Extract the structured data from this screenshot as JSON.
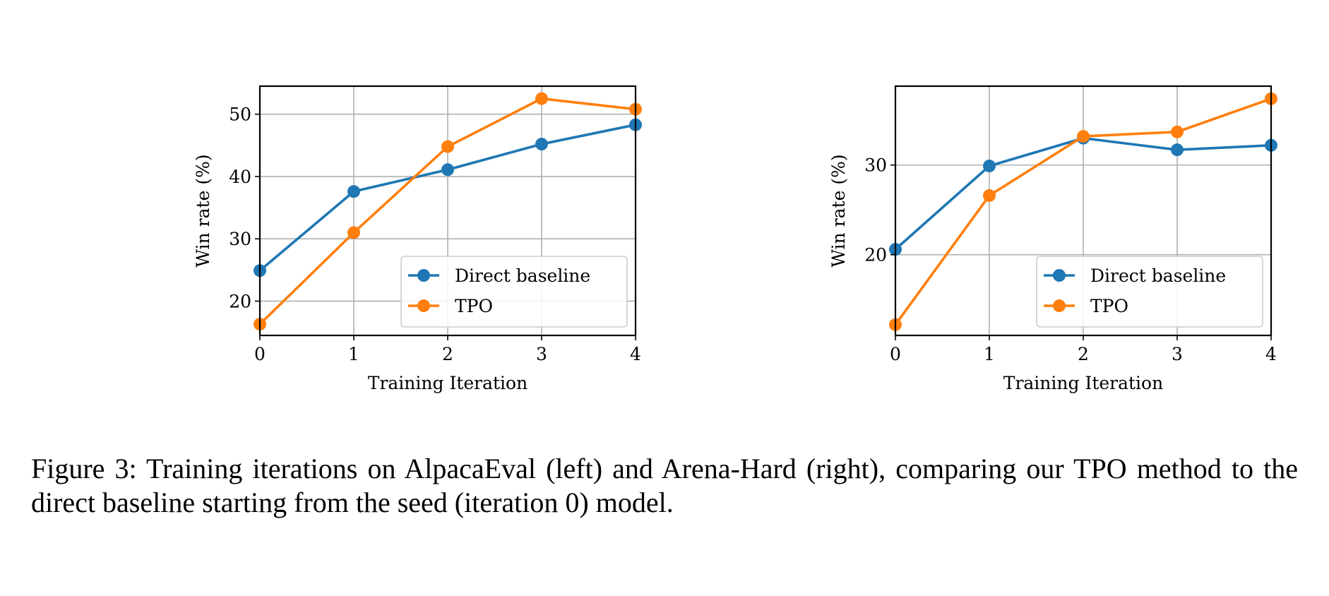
{
  "chart_data": [
    {
      "type": "line",
      "title": "",
      "xlabel": "Training Iteration",
      "ylabel": "Win rate (%)",
      "x": [
        0,
        1,
        2,
        3,
        4
      ],
      "xticks": [
        "0",
        "1",
        "2",
        "3",
        "4"
      ],
      "yticks": [
        "20",
        "30",
        "40",
        "50"
      ],
      "xlim": [
        0,
        4
      ],
      "ylim": [
        14.5,
        54.5
      ],
      "grid": true,
      "legend": "lower-right",
      "series": [
        {
          "name": "Direct baseline",
          "color": "#1f77b4",
          "values": [
            24.9,
            37.6,
            41.1,
            45.2,
            48.3
          ]
        },
        {
          "name": "TPO",
          "color": "#ff7f0e",
          "values": [
            16.3,
            31.0,
            44.8,
            52.5,
            50.8
          ]
        }
      ]
    },
    {
      "type": "line",
      "title": "",
      "xlabel": "Training Iteration",
      "ylabel": "Win rate (%)",
      "x": [
        0,
        1,
        2,
        3,
        4
      ],
      "xticks": [
        "0",
        "1",
        "2",
        "3",
        "4"
      ],
      "yticks": [
        "20",
        "30"
      ],
      "xlim": [
        0,
        4
      ],
      "ylim": [
        11.0,
        38.8
      ],
      "grid": true,
      "legend": "lower-right",
      "series": [
        {
          "name": "Direct baseline",
          "color": "#1f77b4",
          "values": [
            20.6,
            29.9,
            33.0,
            31.7,
            32.2
          ]
        },
        {
          "name": "TPO",
          "color": "#ff7f0e",
          "values": [
            12.2,
            26.6,
            33.2,
            33.7,
            37.4
          ]
        }
      ]
    }
  ],
  "caption": "Figure 3: Training iterations on AlpacaEval (left) and Arena-Hard (right), comparing our TPO method to the direct baseline starting from the seed (iteration 0) model."
}
